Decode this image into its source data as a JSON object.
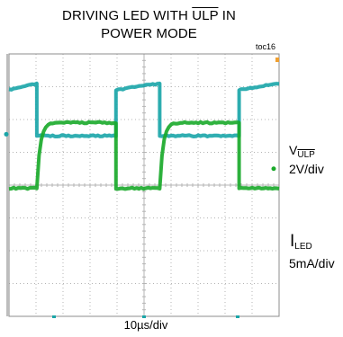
{
  "header": {
    "title_part1": "DRIVING LED WITH ",
    "title_overline": "ULP",
    "title_part2": " IN",
    "title_line2": "POWER MODE",
    "figure_id": "toc16"
  },
  "chart_data": {
    "type": "line",
    "title": "DRIVING LED WITH ULP IN POWER MODE",
    "x_scale_label": "10µs/div",
    "grid": true,
    "x_divisions": 10,
    "y_divisions": 8,
    "xlim": [
      0,
      100
    ],
    "x_unit": "µs",
    "series": [
      {
        "name": "V_ULP",
        "scale": "2V/div",
        "color": "#1aa5a8",
        "y_div_high": 2.9,
        "y_div_low": 1.5,
        "transitions_us": [
          10.3,
          39.6,
          55.8,
          85.2
        ],
        "starts_high": true,
        "high_drift_div": 0.2
      },
      {
        "name": "I_LED",
        "scale": "5mA/div",
        "color": "#1aaa2a",
        "y_div_high": 1.9,
        "y_div_low": -0.1,
        "transitions_us": [
          10.3,
          39.6,
          55.8,
          85.2
        ],
        "starts_high": false,
        "rise_time_constant_us": 1.2
      }
    ]
  },
  "labels": {
    "vulp_prefix": "V",
    "vulp_sub": "ULP",
    "vulp_scale": "2V/div",
    "iled_prefix": "I",
    "iled_sub": "LED",
    "iled_scale": "5mA/div"
  },
  "colors": {
    "grid": "#b4b4b4",
    "frame": "#8c8c8c",
    "marker": "#f0a030"
  }
}
